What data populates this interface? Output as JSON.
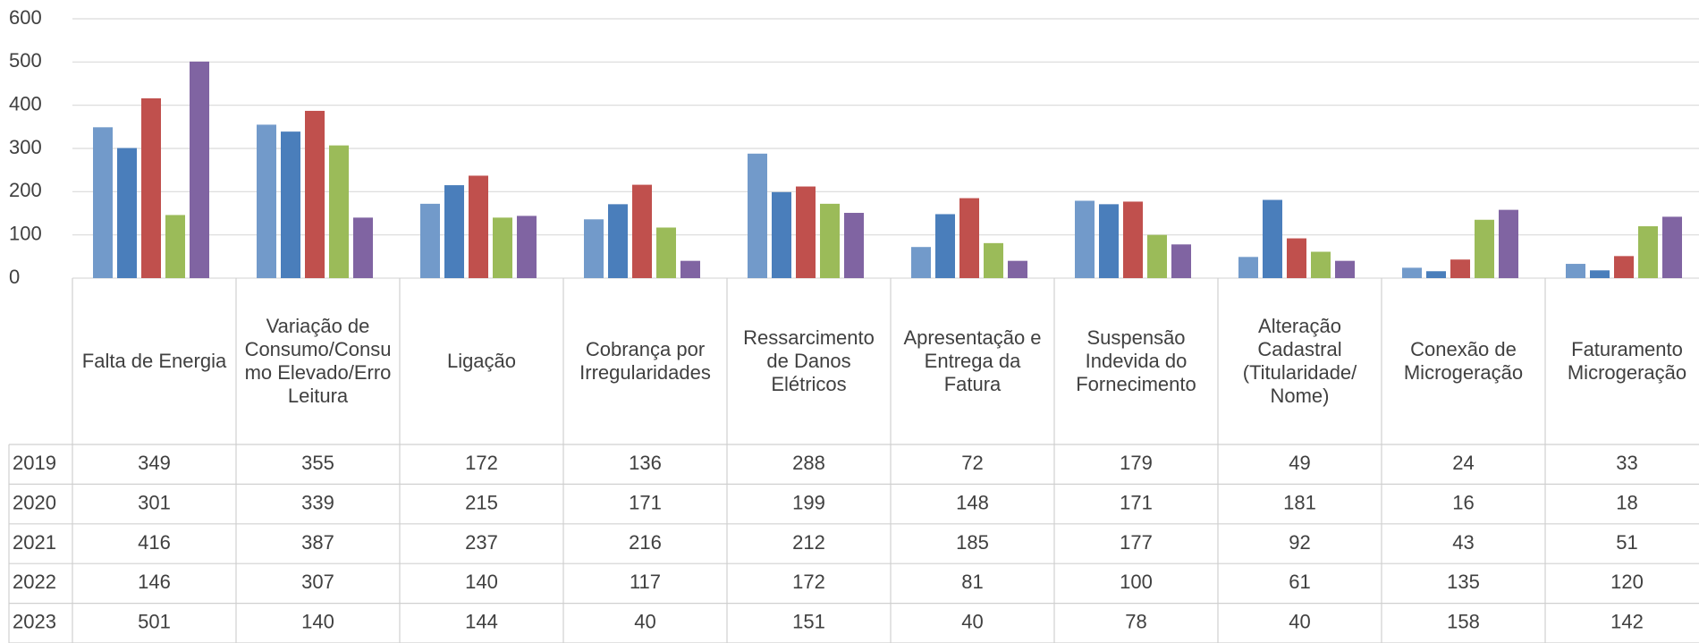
{
  "chart_data": {
    "type": "bar",
    "categories": [
      "Falta de Energia",
      "Variação de Consumo/Consumo Elevado/Erro Leitura",
      "Ligação",
      "Cobrança por Irregularidades",
      "Ressarcimento de Danos Elétricos",
      "Apresentação e Entrega da Fatura",
      "Suspensão Indevida do Fornecimento",
      "Alteração Cadastral (Titularidade/ Nome)",
      "Conexão de Microgeração",
      "Faturamento Microgeração"
    ],
    "series": [
      {
        "name": "2019",
        "color": "#729aca",
        "values": [
          349,
          355,
          172,
          136,
          288,
          72,
          179,
          49,
          24,
          33
        ]
      },
      {
        "name": "2020",
        "color": "#4a7ebb",
        "values": [
          301,
          339,
          215,
          171,
          199,
          148,
          171,
          181,
          16,
          18
        ]
      },
      {
        "name": "2021",
        "color": "#c0504d",
        "values": [
          416,
          387,
          237,
          216,
          212,
          185,
          177,
          92,
          43,
          51
        ]
      },
      {
        "name": "2022",
        "color": "#9bbb59",
        "values": [
          146,
          307,
          140,
          117,
          172,
          81,
          100,
          61,
          135,
          120
        ]
      },
      {
        "name": "2023",
        "color": "#8064a2",
        "values": [
          501,
          140,
          144,
          40,
          151,
          40,
          78,
          40,
          158,
          142
        ]
      }
    ],
    "ylim": [
      0,
      600
    ],
    "yticks": [
      0,
      100,
      200,
      300,
      400,
      500,
      600
    ],
    "grid": true
  }
}
